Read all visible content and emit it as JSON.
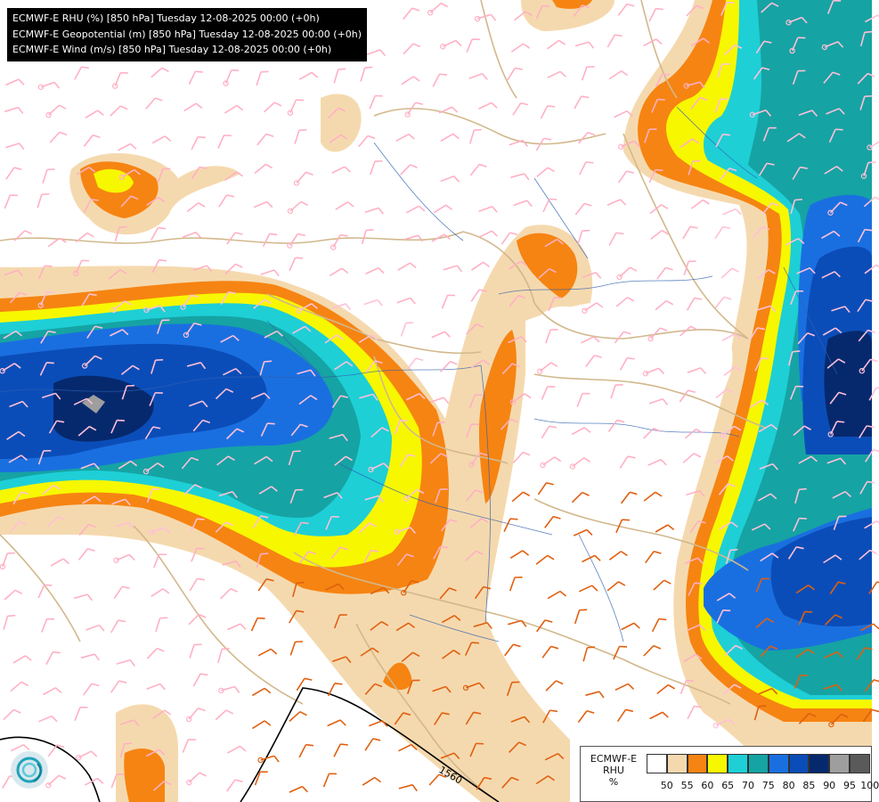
{
  "title_lines": [
    "ECMWF-E RHU (%) [850 hPa] Tuesday 12-08-2025 00:00 (+0h)",
    "ECMWF-E Geopotential (m) [850 hPa] Tuesday 12-08-2025 00:00 (+0h)",
    "ECMWF-E Wind (m/s) [850 hPa] Tuesday 12-08-2025 00:00 (+0h)"
  ],
  "legend": {
    "line1": "ECMWF-E",
    "line2": "RHU",
    "line3": "%",
    "levels": [
      "50",
      "55",
      "60",
      "65",
      "70",
      "75",
      "80",
      "85",
      "90",
      "95",
      "100"
    ],
    "colors": [
      "#ffffff",
      "#f5d9ae",
      "#f68412",
      "#f7f700",
      "#1ecfd6",
      "#16a3a3",
      "#1a6fe0",
      "#0b4db8",
      "#06296e",
      "#9e9e9e",
      "#5a5a5a"
    ]
  },
  "contour_label": "1560",
  "logo": "ecmwf-logo-icon",
  "colors": {
    "border": "#d2b88c",
    "river": "#3060b0",
    "wind_light": "#ffb0c4",
    "wind_mid": "#e06010",
    "contour": "#000000"
  }
}
